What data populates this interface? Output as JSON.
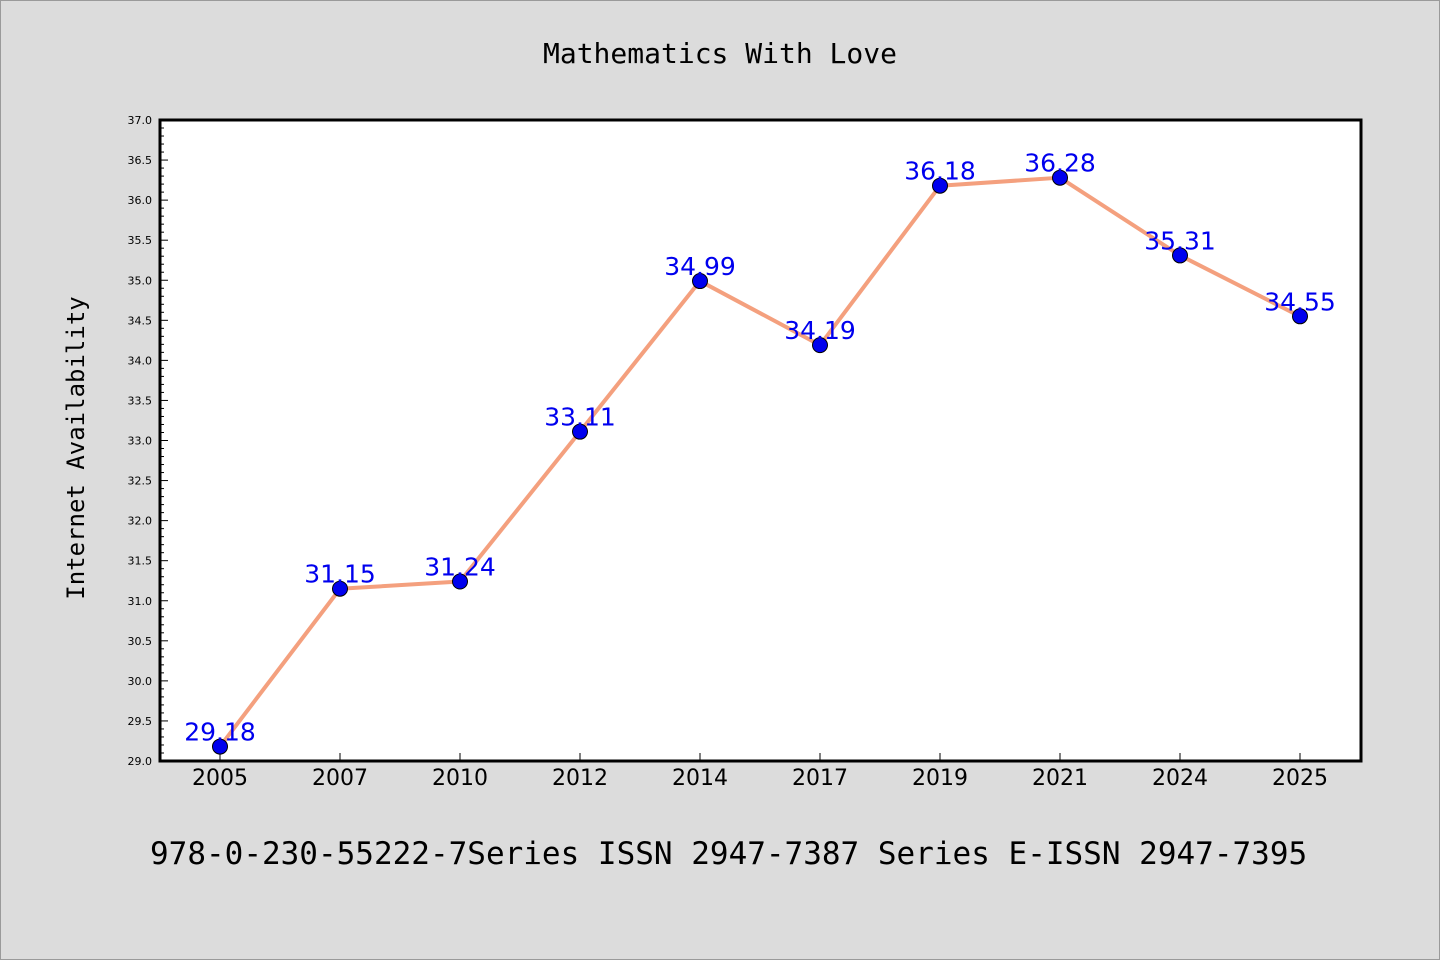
{
  "chart_data": {
    "type": "line",
    "title": "Mathematics With Love",
    "xlabel": "",
    "ylabel": "Internet Availability",
    "categories": [
      "2005",
      "2007",
      "2010",
      "2012",
      "2014",
      "2017",
      "2019",
      "2021",
      "2024",
      "2025"
    ],
    "values": [
      29.18,
      31.15,
      31.24,
      33.11,
      34.99,
      34.19,
      36.18,
      36.28,
      35.31,
      34.55
    ],
    "data_labels": [
      "29.18",
      "31.15",
      "31.24",
      "33.11",
      "34.99",
      "34.19",
      "36.18",
      "36.28",
      "35.31",
      "34.55"
    ],
    "ylim": [
      29.0,
      37.0
    ],
    "yticks": [
      "29.0",
      "29.5",
      "30.0",
      "30.5",
      "31.0",
      "31.5",
      "32.0",
      "32.5",
      "33.0",
      "33.5",
      "34.0",
      "34.5",
      "35.0",
      "35.5",
      "36.0",
      "36.5",
      "37.0"
    ],
    "grid": false,
    "legend": "none",
    "colors": {
      "line": "#f4a07e",
      "marker": "#0000ee",
      "data_label": "#0000ee",
      "background": "#dcdcdc",
      "plot_area": "#ffffff"
    }
  },
  "caption": "978-0-230-55222-7Series ISSN 2947-7387 Series E-ISSN 2947-7395"
}
